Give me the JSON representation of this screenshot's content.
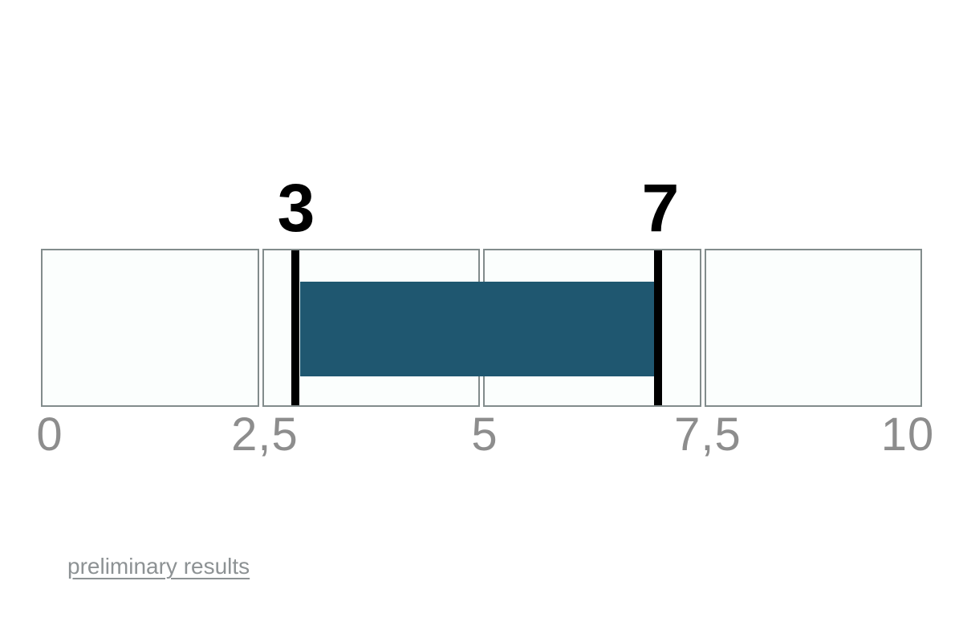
{
  "chart_data": {
    "type": "bar",
    "subtype": "horizontal-range-indicator",
    "title": "",
    "axis": {
      "min": 0,
      "max": 10,
      "ticks": [
        "0",
        "2,5",
        "5",
        "7,5",
        "10"
      ],
      "tick_values": [
        0,
        2.5,
        5,
        7.5,
        10
      ],
      "decimal_separator": ","
    },
    "segments": 4,
    "range": {
      "start": 3,
      "end": 7
    },
    "markers": [
      {
        "value": 3,
        "label": "3"
      },
      {
        "value": 7,
        "label": "7"
      }
    ],
    "colors": {
      "bar": "#1f5770",
      "marker": "#000000",
      "cell_background": "#fbfefd",
      "cell_border": "#828c8c",
      "tick_text": "#8d8d8d",
      "range_label_text": "#000000"
    },
    "legend": null,
    "grid": false
  },
  "footer": {
    "link_label": "preliminary results",
    "link_color": "#8d9294"
  }
}
